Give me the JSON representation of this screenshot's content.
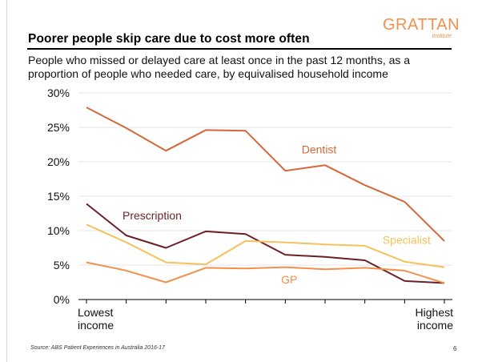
{
  "header": {
    "title": "Poorer people skip care due to cost more often",
    "logo_main": "GRATTAN",
    "logo_sub": "Institute",
    "subtitle": "People who missed or delayed care at least once in the past 12 months, as a proportion of people who needed care, by equivalised household income"
  },
  "footer": {
    "source": "Source: ABS Patient Experiences in Australia 2016-17",
    "page_number": "6"
  },
  "chart_data": {
    "type": "line",
    "title": "Poorer people skip care due to cost more often",
    "x_labels": [
      "Lowest income",
      "Highest income"
    ],
    "y_ticks": [
      "0%",
      "5%",
      "10%",
      "15%",
      "20%",
      "25%",
      "30%"
    ],
    "ylim": [
      0,
      30
    ],
    "grid": "horizontal",
    "legend": "inline labels",
    "x": [
      1,
      2,
      3,
      4,
      5,
      6,
      7,
      8,
      9,
      10
    ],
    "series": [
      {
        "name": "Dentist",
        "color": "#d4683a",
        "label_x": 6.85,
        "label_y": 21.2,
        "values": [
          27.9,
          24.9,
          21.6,
          24.6,
          24.5,
          18.7,
          19.5,
          16.6,
          14.2,
          8.5
        ]
      },
      {
        "name": "Prescription",
        "color": "#6b1f28",
        "label_x": 2.65,
        "label_y": 11.6,
        "values": [
          13.9,
          9.3,
          7.5,
          9.9,
          9.5,
          6.5,
          6.2,
          5.7,
          2.7,
          2.4
        ]
      },
      {
        "name": "Specialist",
        "color": "#f6c15a",
        "label_x": 9.05,
        "label_y": 8.1,
        "values": [
          10.9,
          8.3,
          5.4,
          5.1,
          8.5,
          8.3,
          8.0,
          7.8,
          5.5,
          4.7
        ]
      },
      {
        "name": "GP",
        "color": "#f3904b",
        "label_x": 6.1,
        "label_y": 2.3,
        "values": [
          5.4,
          4.2,
          2.5,
          4.6,
          4.5,
          4.7,
          4.4,
          4.6,
          4.2,
          2.4
        ]
      }
    ]
  }
}
